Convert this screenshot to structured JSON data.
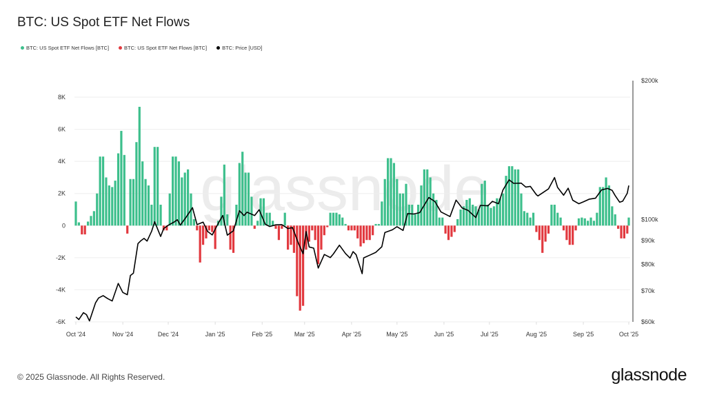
{
  "title": "BTC: US Spot ETF Net Flows",
  "footer": "© 2025 Glassnode. All Rights Reserved.",
  "logo": "glassnode",
  "watermark": "glassnode",
  "legend": [
    {
      "label": "BTC: US Spot ETF Net Flows [BTC]",
      "color": "#3dbf8c"
    },
    {
      "label": "BTC: US Spot ETF Net Flows [BTC]",
      "color": "#e2393f"
    },
    {
      "label": "BTC: Price [USD]",
      "color": "#000000"
    }
  ],
  "chart_data": {
    "type": "bar+line",
    "title": "BTC: US Spot ETF Net Flows",
    "x_range": [
      "2024-10-01",
      "2025-10-01"
    ],
    "x_ticks": [
      "Oct '24",
      "Nov '24",
      "Dec '24",
      "Jan '25",
      "Feb '25",
      "Mar '25",
      "Apr '25",
      "May '25",
      "Jun '25",
      "Jul '25",
      "Aug '25",
      "Sep '25",
      "Oct '25"
    ],
    "x_tick_dates": [
      "2024-10-01",
      "2024-11-01",
      "2024-12-01",
      "2025-01-01",
      "2025-02-01",
      "2025-03-01",
      "2025-04-01",
      "2025-05-01",
      "2025-06-01",
      "2025-07-01",
      "2025-08-01",
      "2025-09-01",
      "2025-10-01"
    ],
    "y_left": {
      "range": [
        -6000,
        8000
      ],
      "ticks": [
        -6000,
        -4000,
        -2000,
        0,
        2000,
        4000,
        6000,
        8000
      ],
      "tick_labels": [
        "-6K",
        "-4K",
        "-2K",
        "0",
        "2K",
        "4K",
        "6K",
        "8K"
      ],
      "scale": "linear",
      "grid": true
    },
    "y_right": {
      "range": [
        60000,
        200000
      ],
      "ticks": [
        60000,
        70000,
        80000,
        90000,
        100000,
        200000
      ],
      "tick_labels": [
        "$60k",
        "$70k",
        "$80k",
        "$90k",
        "$100k",
        "$200k"
      ],
      "scale": "log"
    },
    "positive_color": "#3dbf8c",
    "negative_color": "#e2393f",
    "price_color": "#000000",
    "flows": [
      [
        "2024-10-01",
        1500
      ],
      [
        "2024-10-03",
        200
      ],
      [
        "2024-10-05",
        -550
      ],
      [
        "2024-10-07",
        -550
      ],
      [
        "2024-10-09",
        250
      ],
      [
        "2024-10-11",
        600
      ],
      [
        "2024-10-13",
        900
      ],
      [
        "2024-10-15",
        2000
      ],
      [
        "2024-10-17",
        4300
      ],
      [
        "2024-10-19",
        4300
      ],
      [
        "2024-10-21",
        3000
      ],
      [
        "2024-10-23",
        2500
      ],
      [
        "2024-10-25",
        2400
      ],
      [
        "2024-10-27",
        2800
      ],
      [
        "2024-10-29",
        4500
      ],
      [
        "2024-10-31",
        5900
      ],
      [
        "2024-11-02",
        4400
      ],
      [
        "2024-11-04",
        -500
      ],
      [
        "2024-11-06",
        2900
      ],
      [
        "2024-11-08",
        2900
      ],
      [
        "2024-11-10",
        5200
      ],
      [
        "2024-11-12",
        7400
      ],
      [
        "2024-11-14",
        4000
      ],
      [
        "2024-11-16",
        2900
      ],
      [
        "2024-11-18",
        2500
      ],
      [
        "2024-11-20",
        1300
      ],
      [
        "2024-11-22",
        4900
      ],
      [
        "2024-11-24",
        4900
      ],
      [
        "2024-11-26",
        1300
      ],
      [
        "2024-11-28",
        -300
      ],
      [
        "2024-11-30",
        -300
      ],
      [
        "2024-12-02",
        2000
      ],
      [
        "2024-12-04",
        4300
      ],
      [
        "2024-12-06",
        4300
      ],
      [
        "2024-12-08",
        4000
      ],
      [
        "2024-12-10",
        3000
      ],
      [
        "2024-12-12",
        3300
      ],
      [
        "2024-12-14",
        3500
      ],
      [
        "2024-12-16",
        2000
      ],
      [
        "2024-12-18",
        400
      ],
      [
        "2024-12-20",
        -300
      ],
      [
        "2024-12-22",
        -2300
      ],
      [
        "2024-12-24",
        -1200
      ],
      [
        "2024-12-26",
        -800
      ],
      [
        "2024-12-28",
        -300
      ],
      [
        "2024-12-30",
        -400
      ],
      [
        "2025-01-01",
        -1460
      ],
      [
        "2025-01-03",
        300
      ],
      [
        "2025-01-05",
        1800
      ],
      [
        "2025-01-07",
        3800
      ],
      [
        "2025-01-09",
        700
      ],
      [
        "2025-01-11",
        -1500
      ],
      [
        "2025-01-13",
        -1700
      ],
      [
        "2025-01-15",
        1300
      ],
      [
        "2025-01-17",
        3900
      ],
      [
        "2025-01-19",
        4600
      ],
      [
        "2025-01-21",
        3300
      ],
      [
        "2025-01-23",
        3300
      ],
      [
        "2025-01-25",
        1800
      ],
      [
        "2025-01-27",
        -200
      ],
      [
        "2025-01-29",
        300
      ],
      [
        "2025-01-31",
        1700
      ],
      [
        "2025-02-02",
        1700
      ],
      [
        "2025-02-04",
        800
      ],
      [
        "2025-02-06",
        800
      ],
      [
        "2025-02-08",
        300
      ],
      [
        "2025-02-10",
        -200
      ],
      [
        "2025-02-12",
        -900
      ],
      [
        "2025-02-14",
        -200
      ],
      [
        "2025-02-16",
        800
      ],
      [
        "2025-02-18",
        -1500
      ],
      [
        "2025-02-20",
        -1200
      ],
      [
        "2025-02-22",
        -1700
      ],
      [
        "2025-02-24",
        -4400
      ],
      [
        "2025-02-26",
        -5300
      ],
      [
        "2025-02-28",
        -5000
      ],
      [
        "2025-03-02",
        -1500
      ],
      [
        "2025-03-04",
        -1000
      ],
      [
        "2025-03-06",
        -300
      ],
      [
        "2025-03-08",
        -900
      ],
      [
        "2025-03-10",
        -2400
      ],
      [
        "2025-03-12",
        -1500
      ],
      [
        "2025-03-14",
        -600
      ],
      [
        "2025-03-16",
        -100
      ],
      [
        "2025-03-18",
        800
      ],
      [
        "2025-03-20",
        800
      ],
      [
        "2025-03-22",
        800
      ],
      [
        "2025-03-24",
        700
      ],
      [
        "2025-03-26",
        500
      ],
      [
        "2025-03-28",
        100
      ],
      [
        "2025-03-30",
        -300
      ],
      [
        "2025-04-01",
        -300
      ],
      [
        "2025-04-03",
        -300
      ],
      [
        "2025-04-05",
        -800
      ],
      [
        "2025-04-07",
        -1300
      ],
      [
        "2025-04-09",
        -1100
      ],
      [
        "2025-04-11",
        -900
      ],
      [
        "2025-04-13",
        -900
      ],
      [
        "2025-04-15",
        -600
      ],
      [
        "2025-04-17",
        100
      ],
      [
        "2025-04-19",
        100
      ],
      [
        "2025-04-21",
        1500
      ],
      [
        "2025-04-23",
        2900
      ],
      [
        "2025-04-25",
        4200
      ],
      [
        "2025-04-27",
        4200
      ],
      [
        "2025-04-29",
        3900
      ],
      [
        "2025-05-01",
        2900
      ],
      [
        "2025-05-03",
        2000
      ],
      [
        "2025-05-05",
        2000
      ],
      [
        "2025-05-07",
        2600
      ],
      [
        "2025-05-09",
        1300
      ],
      [
        "2025-05-11",
        1300
      ],
      [
        "2025-05-13",
        700
      ],
      [
        "2025-05-15",
        1300
      ],
      [
        "2025-05-17",
        2500
      ],
      [
        "2025-05-19",
        3500
      ],
      [
        "2025-05-21",
        3500
      ],
      [
        "2025-05-23",
        3000
      ],
      [
        "2025-05-25",
        2000
      ],
      [
        "2025-05-27",
        1600
      ],
      [
        "2025-05-29",
        500
      ],
      [
        "2025-05-31",
        500
      ],
      [
        "2025-06-02",
        -500
      ],
      [
        "2025-06-04",
        -900
      ],
      [
        "2025-06-06",
        -700
      ],
      [
        "2025-06-08",
        -400
      ],
      [
        "2025-06-10",
        400
      ],
      [
        "2025-06-12",
        1000
      ],
      [
        "2025-06-14",
        1200
      ],
      [
        "2025-06-16",
        1600
      ],
      [
        "2025-06-18",
        1700
      ],
      [
        "2025-06-20",
        1300
      ],
      [
        "2025-06-22",
        1200
      ],
      [
        "2025-06-24",
        1000
      ],
      [
        "2025-06-26",
        2600
      ],
      [
        "2025-06-28",
        2800
      ],
      [
        "2025-06-30",
        1300
      ],
      [
        "2025-07-02",
        1100
      ],
      [
        "2025-07-04",
        1200
      ],
      [
        "2025-07-06",
        1700
      ],
      [
        "2025-07-08",
        1700
      ],
      [
        "2025-07-10",
        2000
      ],
      [
        "2025-07-12",
        3100
      ],
      [
        "2025-07-14",
        3700
      ],
      [
        "2025-07-16",
        3700
      ],
      [
        "2025-07-18",
        3500
      ],
      [
        "2025-07-20",
        3500
      ],
      [
        "2025-07-22",
        2000
      ],
      [
        "2025-07-24",
        900
      ],
      [
        "2025-07-26",
        800
      ],
      [
        "2025-07-28",
        500
      ],
      [
        "2025-07-30",
        800
      ],
      [
        "2025-08-01",
        -400
      ],
      [
        "2025-08-03",
        -900
      ],
      [
        "2025-08-05",
        -1700
      ],
      [
        "2025-08-07",
        -1000
      ],
      [
        "2025-08-09",
        -500
      ],
      [
        "2025-08-11",
        1300
      ],
      [
        "2025-08-13",
        1300
      ],
      [
        "2025-08-15",
        800
      ],
      [
        "2025-08-17",
        500
      ],
      [
        "2025-08-19",
        -300
      ],
      [
        "2025-08-21",
        -900
      ],
      [
        "2025-08-23",
        -1200
      ],
      [
        "2025-08-25",
        -1200
      ],
      [
        "2025-08-27",
        -300
      ],
      [
        "2025-08-29",
        450
      ],
      [
        "2025-08-31",
        500
      ],
      [
        "2025-09-02",
        450
      ],
      [
        "2025-09-04",
        300
      ],
      [
        "2025-09-06",
        500
      ],
      [
        "2025-09-08",
        300
      ],
      [
        "2025-09-10",
        800
      ],
      [
        "2025-09-12",
        2400
      ],
      [
        "2025-09-14",
        2400
      ],
      [
        "2025-09-16",
        3000
      ],
      [
        "2025-09-18",
        2500
      ],
      [
        "2025-09-20",
        1200
      ],
      [
        "2025-09-22",
        700
      ],
      [
        "2025-09-24",
        -200
      ],
      [
        "2025-09-26",
        -800
      ],
      [
        "2025-09-28",
        -800
      ],
      [
        "2025-09-30",
        -500
      ],
      [
        "2025-10-01",
        500
      ]
    ],
    "price": [
      [
        "2024-10-01",
        61500
      ],
      [
        "2024-10-03",
        60700
      ],
      [
        "2024-10-06",
        62800
      ],
      [
        "2024-10-08",
        62200
      ],
      [
        "2024-10-10",
        60300
      ],
      [
        "2024-10-14",
        66000
      ],
      [
        "2024-10-16",
        67600
      ],
      [
        "2024-10-19",
        68400
      ],
      [
        "2024-10-22",
        67400
      ],
      [
        "2024-10-25",
        66600
      ],
      [
        "2024-10-29",
        72700
      ],
      [
        "2024-11-01",
        69500
      ],
      [
        "2024-11-04",
        68700
      ],
      [
        "2024-11-06",
        75600
      ],
      [
        "2024-11-08",
        76500
      ],
      [
        "2024-11-11",
        88700
      ],
      [
        "2024-11-13",
        90000
      ],
      [
        "2024-11-15",
        91000
      ],
      [
        "2024-11-17",
        89800
      ],
      [
        "2024-11-20",
        94300
      ],
      [
        "2024-11-22",
        98900
      ],
      [
        "2024-11-26",
        91900
      ],
      [
        "2024-11-28",
        95600
      ],
      [
        "2024-12-01",
        97200
      ],
      [
        "2024-12-05",
        98800
      ],
      [
        "2024-12-07",
        99900
      ],
      [
        "2024-12-09",
        97300
      ],
      [
        "2024-12-13",
        101400
      ],
      [
        "2024-12-17",
        106100
      ],
      [
        "2024-12-20",
        97500
      ],
      [
        "2024-12-24",
        98700
      ],
      [
        "2024-12-27",
        94200
      ],
      [
        "2024-12-30",
        92600
      ],
      [
        "2025-01-03",
        98100
      ],
      [
        "2025-01-06",
        102000
      ],
      [
        "2025-01-09",
        92500
      ],
      [
        "2025-01-13",
        94500
      ],
      [
        "2025-01-17",
        104500
      ],
      [
        "2025-01-20",
        102000
      ],
      [
        "2025-01-22",
        103700
      ],
      [
        "2025-01-27",
        102000
      ],
      [
        "2025-01-30",
        105000
      ],
      [
        "2025-02-03",
        97700
      ],
      [
        "2025-02-06",
        96600
      ],
      [
        "2025-02-10",
        97400
      ],
      [
        "2025-02-14",
        97500
      ],
      [
        "2025-02-18",
        95600
      ],
      [
        "2025-02-21",
        96100
      ],
      [
        "2025-02-25",
        88700
      ],
      [
        "2025-02-28",
        84300
      ],
      [
        "2025-03-02",
        94200
      ],
      [
        "2025-03-04",
        87200
      ],
      [
        "2025-03-07",
        86700
      ],
      [
        "2025-03-10",
        78500
      ],
      [
        "2025-03-14",
        84000
      ],
      [
        "2025-03-18",
        82700
      ],
      [
        "2025-03-20",
        84200
      ],
      [
        "2025-03-24",
        88000
      ],
      [
        "2025-03-28",
        84400
      ],
      [
        "2025-03-31",
        82500
      ],
      [
        "2025-04-02",
        85200
      ],
      [
        "2025-04-04",
        83900
      ],
      [
        "2025-04-08",
        76300
      ],
      [
        "2025-04-09",
        82600
      ],
      [
        "2025-04-13",
        83700
      ],
      [
        "2025-04-17",
        84900
      ],
      [
        "2025-04-21",
        87300
      ],
      [
        "2025-04-23",
        93700
      ],
      [
        "2025-04-28",
        95000
      ],
      [
        "2025-05-01",
        96500
      ],
      [
        "2025-05-05",
        94700
      ],
      [
        "2025-05-08",
        103000
      ],
      [
        "2025-05-12",
        102800
      ],
      [
        "2025-05-16",
        103500
      ],
      [
        "2025-05-22",
        111600
      ],
      [
        "2025-05-26",
        109400
      ],
      [
        "2025-05-30",
        103900
      ],
      [
        "2025-06-05",
        101500
      ],
      [
        "2025-06-09",
        110200
      ],
      [
        "2025-06-13",
        105900
      ],
      [
        "2025-06-17",
        104600
      ],
      [
        "2025-06-22",
        101000
      ],
      [
        "2025-06-25",
        107300
      ],
      [
        "2025-06-30",
        107100
      ],
      [
        "2025-07-03",
        109500
      ],
      [
        "2025-07-07",
        108200
      ],
      [
        "2025-07-10",
        116000
      ],
      [
        "2025-07-14",
        121900
      ],
      [
        "2025-07-17",
        119800
      ],
      [
        "2025-07-22",
        119900
      ],
      [
        "2025-07-25",
        117600
      ],
      [
        "2025-07-28",
        118000
      ],
      [
        "2025-08-01",
        113200
      ],
      [
        "2025-08-02",
        112500
      ],
      [
        "2025-08-06",
        114800
      ],
      [
        "2025-08-09",
        116500
      ],
      [
        "2025-08-13",
        123300
      ],
      [
        "2025-08-15",
        117400
      ],
      [
        "2025-08-19",
        112900
      ],
      [
        "2025-08-22",
        116900
      ],
      [
        "2025-08-25",
        110100
      ],
      [
        "2025-08-29",
        108200
      ],
      [
        "2025-09-01",
        109200
      ],
      [
        "2025-09-05",
        110700
      ],
      [
        "2025-09-09",
        111200
      ],
      [
        "2025-09-13",
        115900
      ],
      [
        "2025-09-17",
        116800
      ],
      [
        "2025-09-20",
        115700
      ],
      [
        "2025-09-22",
        112700
      ],
      [
        "2025-09-25",
        109000
      ],
      [
        "2025-09-27",
        109600
      ],
      [
        "2025-09-30",
        114000
      ],
      [
        "2025-10-01",
        118500
      ]
    ]
  }
}
